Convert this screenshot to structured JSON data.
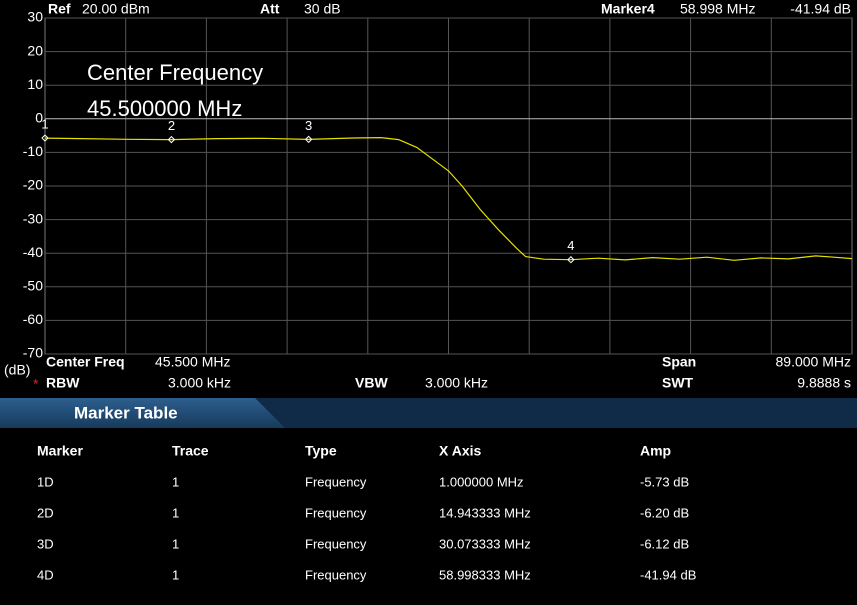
{
  "header": {
    "ref_label": "Ref",
    "ref_value": "20.00 dBm",
    "att_label": "Att",
    "att_value": "30 dB",
    "marker_label": "Marker4",
    "marker_freq": "58.998 MHz",
    "marker_amp": "-41.94 dB"
  },
  "overlay": {
    "title": "Center Frequency",
    "value": "45.500000 MHz"
  },
  "chart_data": {
    "type": "line",
    "y_unit": "(dB)",
    "color": "#e6e000",
    "xlim": [
      1,
      90
    ],
    "ylim": [
      -70,
      30
    ],
    "yticks": [
      30,
      20,
      10,
      0,
      -10,
      -20,
      -30,
      -40,
      -50,
      -60,
      -70
    ],
    "grid": true,
    "x": [
      1,
      5,
      10,
      14.943333,
      20,
      25,
      30.073333,
      35,
      38,
      40,
      42,
      44,
      45.5,
      47,
      49,
      51,
      53,
      54,
      56,
      58.998333,
      62,
      65,
      68,
      71,
      74,
      77,
      80,
      83,
      86,
      88,
      90
    ],
    "values": [
      -5.73,
      -5.9,
      -6.1,
      -6.2,
      -5.9,
      -5.8,
      -6.12,
      -5.7,
      -5.6,
      -6.2,
      -8.5,
      -12.5,
      -15.5,
      -20,
      -27,
      -33,
      -38.5,
      -41,
      -41.8,
      -41.94,
      -41.5,
      -42,
      -41.3,
      -41.8,
      -41.2,
      -42.1,
      -41.4,
      -41.7,
      -40.8,
      -41.2,
      -41.6
    ],
    "markers": [
      {
        "label": "1",
        "x": 1,
        "y": -5.73
      },
      {
        "label": "2",
        "x": 14.943333,
        "y": -6.2
      },
      {
        "label": "3",
        "x": 30.073333,
        "y": -6.12
      },
      {
        "label": "4",
        "x": 58.998333,
        "y": -41.94
      }
    ]
  },
  "footer": {
    "center_label": "Center Freq",
    "center_value": "45.500 MHz",
    "span_label": "Span",
    "span_value": "89.000 MHz",
    "rbw_star": "*",
    "rbw_label": "RBW",
    "rbw_value": "3.000 kHz",
    "vbw_label": "VBW",
    "vbw_value": "3.000 kHz",
    "swt_label": "SWT",
    "swt_value": "9.8888 s"
  },
  "marker_table": {
    "title": "Marker Table",
    "columns": [
      "Marker",
      "Trace",
      "Type",
      "X Axis",
      "Amp"
    ],
    "rows": [
      [
        "1D",
        "1",
        "Frequency",
        "1.000000 MHz",
        "-5.73 dB"
      ],
      [
        "2D",
        "1",
        "Frequency",
        "14.943333 MHz",
        "-6.20 dB"
      ],
      [
        "3D",
        "1",
        "Frequency",
        "30.073333 MHz",
        "-6.12 dB"
      ],
      [
        "4D",
        "1",
        "Frequency",
        "58.998333 MHz",
        "-41.94 dB"
      ]
    ]
  }
}
